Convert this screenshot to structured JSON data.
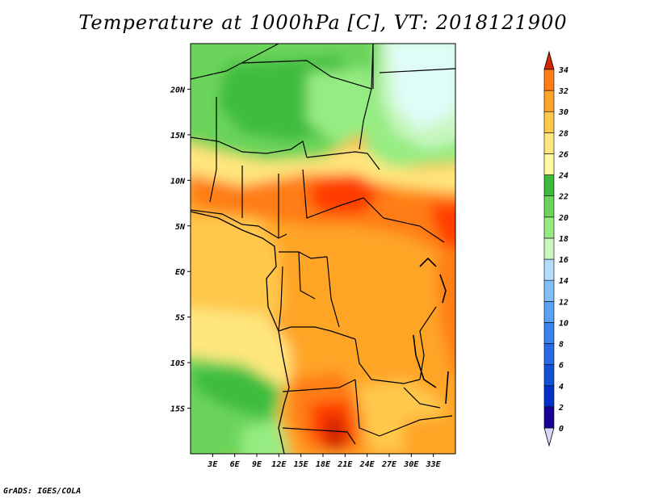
{
  "title": "Temperature at 1000hPa [C], VT: 2018121900",
  "credit": "GrADS: IGES/COLA",
  "map": {
    "lon_range": [
      0,
      36
    ],
    "lat_range": [
      -20,
      25
    ],
    "lat_ticks": [
      {
        "value": 20,
        "label": "20N"
      },
      {
        "value": 15,
        "label": "15N"
      },
      {
        "value": 10,
        "label": "10N"
      },
      {
        "value": 5,
        "label": "5N"
      },
      {
        "value": 0,
        "label": "EQ"
      },
      {
        "value": -5,
        "label": "5S"
      },
      {
        "value": -10,
        "label": "10S"
      },
      {
        "value": -15,
        "label": "15S"
      }
    ],
    "lon_ticks": [
      {
        "value": 3,
        "label": "3E"
      },
      {
        "value": 6,
        "label": "6E"
      },
      {
        "value": 9,
        "label": "9E"
      },
      {
        "value": 12,
        "label": "12E"
      },
      {
        "value": 15,
        "label": "15E"
      },
      {
        "value": 18,
        "label": "18E"
      },
      {
        "value": 21,
        "label": "21E"
      },
      {
        "value": 24,
        "label": "24E"
      },
      {
        "value": 27,
        "label": "27E"
      },
      {
        "value": 30,
        "label": "30E"
      },
      {
        "value": 33,
        "label": "33E"
      }
    ]
  },
  "colorbar": {
    "levels": [
      "0",
      "2",
      "4",
      "6",
      "8",
      "10",
      "12",
      "14",
      "16",
      "18",
      "20",
      "22",
      "24",
      "26",
      "28",
      "30",
      "32",
      "34"
    ],
    "colors": [
      "#160096",
      "#0030c8",
      "#1250d8",
      "#2a6ae6",
      "#3c82ee",
      "#5aa0f4",
      "#82bef8",
      "#b4dcfc",
      "#c8f7c0",
      "#96ec82",
      "#6ad45a",
      "#3cbc3c",
      "#fffaa0",
      "#ffe67d",
      "#ffc84b",
      "#ffa528",
      "#ff7d14",
      "#ff3c00",
      "#d22800"
    ]
  }
}
